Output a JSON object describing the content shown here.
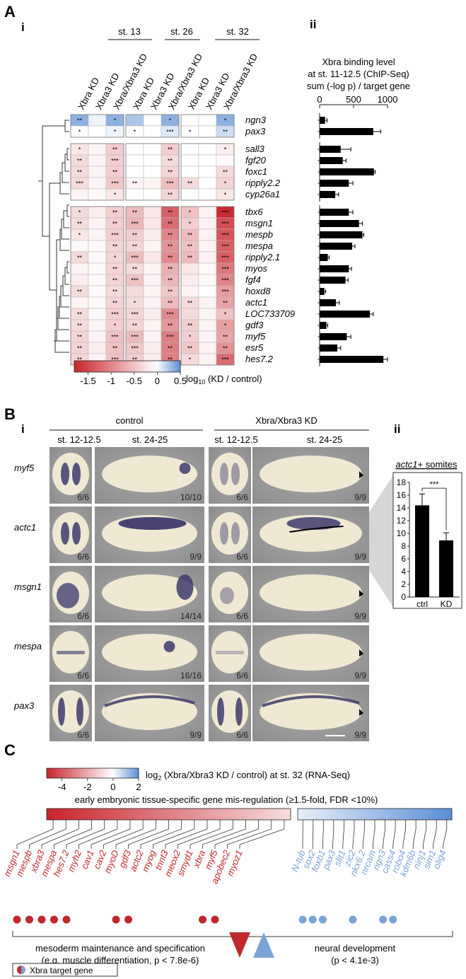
{
  "panel_A": {
    "label": "A",
    "sub_i": "i",
    "sub_ii": "ii",
    "stages": [
      "st. 13",
      "st. 26",
      "st. 32"
    ],
    "columns": [
      "Xbra KD",
      "Xbra3 KD",
      "Xbra/Xbra3 KD"
    ],
    "genes": [
      "ngn3",
      "pax3",
      "sall3",
      "fgf20",
      "foxc1",
      "ripply2.2",
      "cyp26a1",
      "tbx6",
      "msgn1",
      "mespb",
      "mespa",
      "ripply2.1",
      "myos",
      "fgf4",
      "hoxd8",
      "actc1",
      "LOC733709",
      "gdf3",
      "myf5",
      "esr5",
      "hes7.2"
    ],
    "colorbar": {
      "ticks": [
        "-1.5",
        "-1",
        "-0.5",
        "0",
        "0.5"
      ],
      "label_prefix": "log",
      "label_sub": "10",
      "label_suffix": " (KD / control)"
    },
    "binding_title": [
      "Xbra binding level",
      "at st. 11-12.5 (ChIP-Seq)",
      "sum (-log p) / target gene"
    ]
  },
  "chart_data": [
    {
      "type": "heatmap",
      "title": "log10 (KD / control)",
      "stages": [
        "st. 13",
        "st. 26",
        "st. 32"
      ],
      "columns": [
        "Xbra KD",
        "Xbra3 KD",
        "Xbra/Xbra3 KD"
      ],
      "rows": [
        "ngn3",
        "pax3",
        "sall3",
        "fgf20",
        "foxc1",
        "ripply2.2",
        "cyp26a1",
        "tbx6",
        "msgn1",
        "mespb",
        "mespa",
        "ripply2.1",
        "myos",
        "fgf4",
        "hoxd8",
        "actc1",
        "LOC733709",
        "gdf3",
        "myf5",
        "esr5",
        "hes7.2"
      ],
      "row_groups": [
        2,
        5,
        14
      ],
      "color_range": [
        -1.8,
        0.5
      ],
      "values": [
        [
          0.35,
          0.05,
          0.35,
          0.25,
          0.0,
          0.35,
          0.0,
          0.0,
          0.35
        ],
        [
          0.0,
          0.0,
          0.05,
          0.0,
          0.0,
          0.1,
          0.0,
          0.0,
          0.15
        ],
        [
          -0.2,
          -0.1,
          -0.4,
          0.0,
          0.0,
          -0.4,
          0.0,
          0.0,
          -0.15
        ],
        [
          -0.3,
          -0.1,
          -0.4,
          0.0,
          0.0,
          -0.3,
          0.0,
          0.0,
          -0.05
        ],
        [
          -0.3,
          -0.1,
          -0.4,
          0.0,
          0.0,
          -0.35,
          0.0,
          0.0,
          -0.3
        ],
        [
          -0.3,
          -0.1,
          -0.45,
          -0.1,
          -0.1,
          -0.55,
          -0.3,
          0.0,
          -0.35
        ],
        [
          -0.1,
          -0.05,
          -0.2,
          0.0,
          0.0,
          -0.35,
          0.0,
          0.0,
          -0.2
        ],
        [
          -0.3,
          -0.15,
          -0.4,
          -0.55,
          -0.2,
          -1.3,
          -0.5,
          -0.1,
          -1.75
        ],
        [
          -0.3,
          -0.1,
          -0.4,
          -0.6,
          -0.2,
          -1.2,
          -0.4,
          -0.1,
          -1.45
        ],
        [
          -0.2,
          -0.1,
          -0.4,
          -0.4,
          -0.15,
          -1.0,
          -0.55,
          -0.1,
          -1.4
        ],
        [
          -0.05,
          -0.05,
          -0.35,
          -0.35,
          -0.1,
          -0.9,
          -0.5,
          -0.1,
          -1.3
        ],
        [
          -0.3,
          -0.05,
          -0.35,
          -0.55,
          -0.2,
          -0.95,
          -0.55,
          -0.1,
          -1.3
        ],
        [
          -0.1,
          -0.05,
          -0.35,
          -0.3,
          -0.1,
          -0.65,
          -0.2,
          -0.05,
          -1.1
        ],
        [
          -0.15,
          -0.05,
          -0.35,
          -0.5,
          -0.1,
          -0.6,
          -0.15,
          -0.05,
          -1.0
        ],
        [
          -0.3,
          -0.05,
          -0.3,
          -0.3,
          -0.1,
          -0.45,
          -0.1,
          0.0,
          -0.8
        ],
        [
          -0.1,
          -0.05,
          -0.35,
          -0.3,
          -0.1,
          -0.55,
          -0.3,
          -0.1,
          -0.75
        ],
        [
          -0.3,
          -0.05,
          -0.4,
          -0.35,
          -0.15,
          -0.95,
          -0.3,
          -0.1,
          -0.5
        ],
        [
          -0.3,
          -0.1,
          -0.4,
          -0.35,
          -0.1,
          -0.85,
          -0.4,
          -0.1,
          -0.8
        ],
        [
          -0.35,
          -0.1,
          -0.5,
          -0.55,
          -0.1,
          -1.05,
          -0.4,
          -0.1,
          -0.75
        ],
        [
          -0.35,
          -0.15,
          -0.5,
          -0.45,
          -0.15,
          -1.05,
          -0.45,
          -0.1,
          -0.9
        ],
        [
          -0.35,
          -0.1,
          -0.5,
          -0.4,
          -0.15,
          -1.05,
          -0.3,
          -0.1,
          -1.2
        ]
      ],
      "significance": [
        [
          "**",
          "",
          "*",
          "",
          "",
          "*",
          "",
          "",
          "*"
        ],
        [
          "*",
          "",
          "*",
          "*",
          "",
          "***",
          "*",
          "",
          "**"
        ],
        [
          "*",
          "",
          "**",
          "",
          "",
          "**",
          "",
          "",
          "*"
        ],
        [
          "**",
          "",
          "***",
          "",
          "",
          "**",
          "",
          "",
          ""
        ],
        [
          "**",
          "",
          "**",
          "",
          "",
          "**",
          "",
          "",
          "**"
        ],
        [
          "***",
          "",
          "***",
          "**",
          "",
          "***",
          "**",
          "",
          "*"
        ],
        [
          "",
          "",
          "*",
          "",
          "",
          "**",
          "",
          "",
          "*"
        ],
        [
          "*",
          "",
          "**",
          "**",
          "",
          "**",
          "*",
          "",
          "***"
        ],
        [
          "**",
          "",
          "**",
          "***",
          "",
          "**",
          "*",
          "",
          "***"
        ],
        [
          "*",
          "",
          "***",
          "**",
          "",
          "**",
          "**",
          "",
          "***"
        ],
        [
          "",
          "",
          "**",
          "**",
          "",
          "**",
          "**",
          "",
          "***"
        ],
        [
          "**",
          "",
          "*",
          "***",
          "",
          "**",
          "**",
          "",
          "***"
        ],
        [
          "",
          "",
          "**",
          "**",
          "",
          "**",
          "",
          "",
          "***"
        ],
        [
          "",
          "",
          "**",
          "***",
          "",
          "**",
          "",
          "",
          "***"
        ],
        [
          "**",
          "",
          "**",
          "",
          "",
          "**",
          "",
          "",
          "***"
        ],
        [
          "",
          "",
          "**",
          "*",
          "",
          "**",
          "**",
          "",
          "**"
        ],
        [
          "**",
          "",
          "***",
          "***",
          "",
          "***",
          "",
          "",
          "*"
        ],
        [
          "**",
          "",
          "*",
          "**",
          "",
          "**",
          "**",
          "",
          "*"
        ],
        [
          "**",
          "",
          "***",
          "***",
          "",
          "***",
          "*",
          "",
          "**"
        ],
        [
          "**",
          "",
          "**",
          "***",
          "",
          "**",
          "**",
          "",
          "**"
        ],
        [
          "**",
          "",
          "***",
          "**",
          "",
          "**",
          "*",
          "",
          "***"
        ]
      ]
    },
    {
      "type": "bar",
      "orientation": "horizontal",
      "title": "Xbra binding level at st. 11-12.5 (ChIP-Seq) sum (-log p) / target gene",
      "categories": [
        "ngn3",
        "pax3",
        "sall3",
        "fgf20",
        "foxc1",
        "ripply2.2",
        "cyp26a1",
        "tbx6",
        "msgn1",
        "mespb",
        "mespa",
        "ripply2.1",
        "myos",
        "fgf4",
        "hoxd8",
        "actc1",
        "LOC733709",
        "gdf3",
        "myf5",
        "esr5",
        "hes7.2"
      ],
      "values": [
        80,
        790,
        310,
        340,
        800,
        430,
        230,
        430,
        580,
        630,
        480,
        120,
        430,
        380,
        70,
        240,
        740,
        100,
        400,
        260,
        940
      ],
      "errors": [
        30,
        110,
        150,
        50,
        20,
        60,
        50,
        60,
        50,
        20,
        40,
        20,
        40,
        40,
        20,
        50,
        50,
        20,
        60,
        50,
        60
      ],
      "xlim": [
        0,
        1000
      ],
      "xticks": [
        "0",
        "500",
        "1000"
      ]
    },
    {
      "type": "bar",
      "title": "actc1+ somites",
      "categories": [
        "ctrl",
        "KD"
      ],
      "values": [
        14.4,
        8.9
      ],
      "errors": [
        1.8,
        1.2
      ],
      "ylim": [
        0,
        18
      ],
      "yticks": [
        "0",
        "2",
        "4",
        "6",
        "8",
        "10",
        "12",
        "14",
        "16",
        "18"
      ],
      "significance": "***"
    }
  ],
  "panel_B": {
    "label": "B",
    "sub_i": "i",
    "sub_ii": "ii",
    "conditions": [
      "control",
      "Xbra/Xbra3 KD"
    ],
    "stages": [
      "st. 12-12.5",
      "st. 24-25",
      "st. 12-12.5",
      "st. 24-25"
    ],
    "genes": [
      "myf5",
      "actc1",
      "msgn1",
      "mespa",
      "pax3"
    ],
    "counts": [
      [
        "6/6",
        "10/10",
        "6/6",
        "9/9"
      ],
      [
        "6/6",
        "9/9",
        "6/6",
        "9/9"
      ],
      [
        "6/6",
        "14/14",
        "6/6",
        "9/9"
      ],
      [
        "6/6",
        "16/16",
        "6/6",
        "9/9"
      ],
      [
        "6/6",
        "9/9",
        "6/6",
        "9/9"
      ]
    ],
    "somite_title": "actc1",
    "somite_suffix": "+ somites"
  },
  "panel_C": {
    "label": "C",
    "colorbar": {
      "ticks": [
        "-4",
        "-2",
        "0",
        "2"
      ],
      "label_prefix": "log",
      "label_sub": "2",
      "label_suffix": " (Xbra/Xbra3 KD / control) at st. 32 (RNA-Seq)"
    },
    "misreg_title": "early embryonic tissue-specific gene mis-regulation (≥1.5-fold, FDR <10%)",
    "meso_genes": [
      "msgn1",
      "mespb",
      "xbra3",
      "mespa",
      "hes7.2",
      "myh2",
      "cav1",
      "cav2",
      "myoD",
      "gdf3",
      "actc2",
      "myog",
      "tnnt3",
      "meox2",
      "smyd1",
      "xbra",
      "myf5",
      "apobec2",
      "myoz1"
    ],
    "meso_targets": [
      true,
      true,
      true,
      true,
      true,
      false,
      false,
      false,
      true,
      true,
      false,
      false,
      false,
      false,
      false,
      true,
      true,
      false,
      false
    ],
    "neural_genes": [
      "N-tub",
      "sox2",
      "foxb1",
      "pax3",
      "slit1",
      "zic2",
      "nkx6.2",
      "nrcam",
      "ngn3",
      "cass4",
      "robo4",
      "kdm6b",
      "ninj1",
      "sim1",
      "olig4"
    ],
    "neural_targets": [
      true,
      true,
      true,
      false,
      false,
      true,
      false,
      false,
      true,
      true,
      false,
      false,
      false,
      false,
      false
    ],
    "meso_label": [
      "mesoderm maintenance and specification",
      "(e.g. muscle differentiation, p < 7.8e-6)"
    ],
    "neural_label": [
      "neural development",
      "(p < 4.1e-3)"
    ],
    "legend": "Xbra target gene",
    "colors": {
      "red": "#c0282e",
      "blue": "#7aa3d8"
    }
  }
}
